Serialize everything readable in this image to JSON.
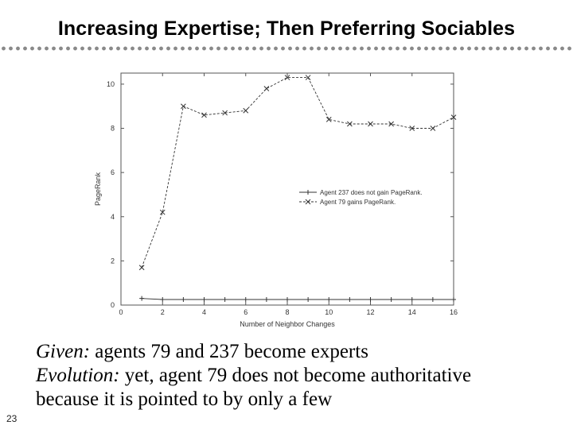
{
  "slide": {
    "title": "Increasing Expertise; Then Preferring Sociables",
    "number": "23"
  },
  "text": {
    "line1_label": "Given:",
    "line1_rest": " agents 79 and 237 become experts",
    "line2_label": "Evolution:",
    "line2_rest": " yet, agent 79 does not become authoritative",
    "line3": "because it is pointed to by only a few"
  },
  "chart_data": {
    "type": "line",
    "xlabel": "Number of Neighbor Changes",
    "ylabel": "PageRank",
    "xlim": [
      0,
      16
    ],
    "ylim": [
      0,
      10.5
    ],
    "xticks": [
      0,
      2,
      4,
      6,
      8,
      10,
      12,
      14,
      16
    ],
    "yticks": [
      0,
      2,
      4,
      6,
      8,
      10
    ],
    "legend_position": "center-right",
    "series": [
      {
        "name": "Agent 237 does not gain PageRank.",
        "marker": "+",
        "dash": "solid",
        "color": "#333333",
        "x": [
          1,
          2,
          3,
          4,
          5,
          6,
          7,
          8,
          9,
          10,
          11,
          12,
          13,
          14,
          15,
          16
        ],
        "y": [
          0.3,
          0.25,
          0.25,
          0.25,
          0.25,
          0.25,
          0.25,
          0.25,
          0.25,
          0.25,
          0.25,
          0.25,
          0.25,
          0.25,
          0.25,
          0.25
        ]
      },
      {
        "name": "Agent 79 gains PageRank.",
        "marker": "x",
        "dash": "dashed",
        "color": "#333333",
        "x": [
          1,
          2,
          3,
          4,
          5,
          6,
          7,
          8,
          9,
          10,
          11,
          12,
          13,
          14,
          15,
          16
        ],
        "y": [
          1.7,
          4.2,
          9.0,
          8.6,
          8.7,
          8.8,
          9.8,
          10.3,
          10.3,
          8.4,
          8.2,
          8.2,
          8.2,
          8.0,
          8.0,
          8.5
        ]
      }
    ]
  }
}
